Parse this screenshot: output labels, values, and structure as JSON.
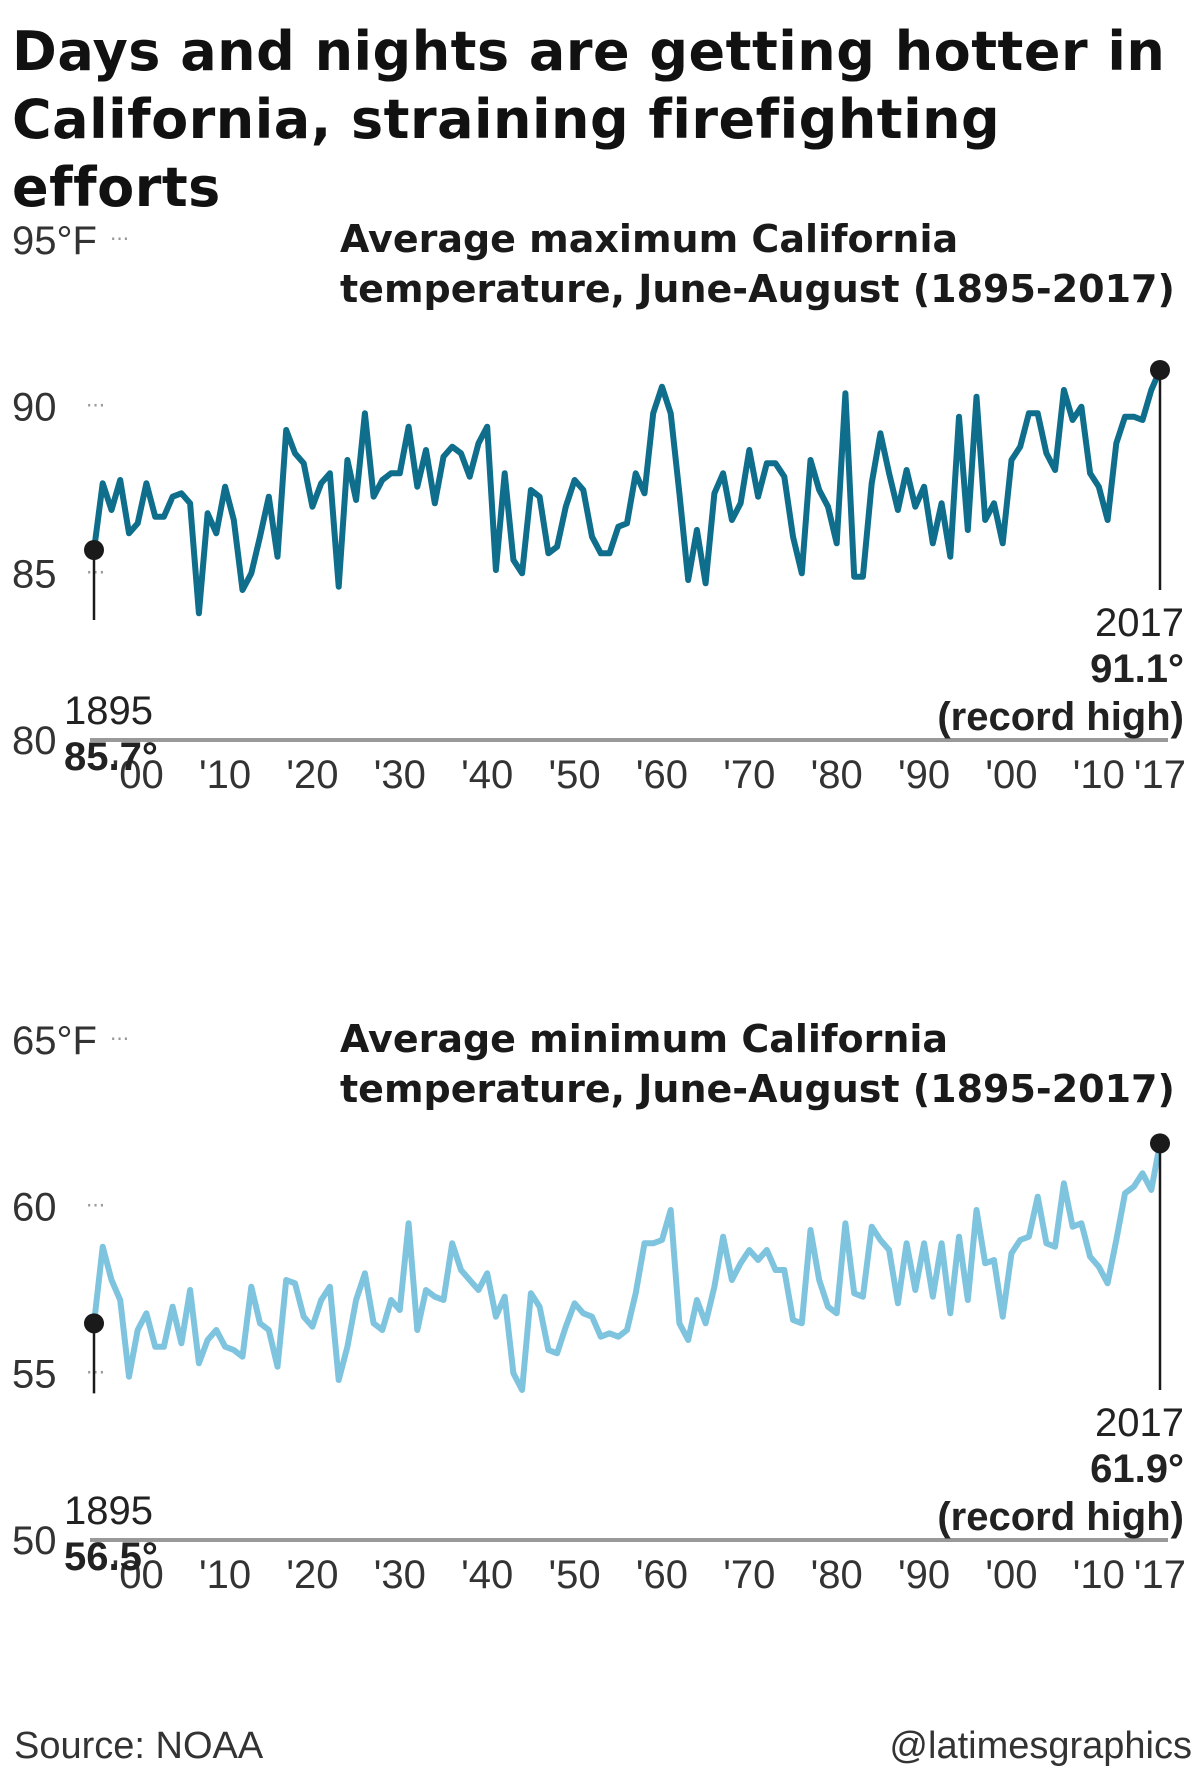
{
  "headline": "Days and nights are getting hotter in California, straining firefighting efforts",
  "source": "Source: NOAA",
  "credit": "@latimesgraphics",
  "colors": {
    "max_line": "#0e6e8c",
    "min_line": "#7fc4df",
    "axis": "#999999",
    "marker": "#1a1a1a"
  },
  "chart_data": [
    {
      "type": "line",
      "title": "Average maximum California temperature, June-August (1895-2017)",
      "y_ticks": [
        "95°F",
        "90",
        "85",
        "80"
      ],
      "y_tick_values": [
        95,
        90,
        85,
        80
      ],
      "ylim": [
        80,
        95
      ],
      "xlim": [
        1895,
        2017
      ],
      "x_ticks": [
        "'00",
        "'10",
        "'20",
        "'30",
        "'40",
        "'50",
        "'60",
        "'70",
        "'80",
        "'90",
        "'00",
        "'10",
        "'17"
      ],
      "x_tick_values": [
        1900,
        1910,
        1920,
        1930,
        1940,
        1950,
        1960,
        1970,
        1980,
        1990,
        2000,
        2010,
        2017
      ],
      "start": {
        "year": "1895",
        "value": "85.7°"
      },
      "end": {
        "year": "2017",
        "value": "91.1°",
        "note": "(record high)"
      },
      "x": [
        1895,
        1896,
        1897,
        1898,
        1899,
        1900,
        1901,
        1902,
        1903,
        1904,
        1905,
        1906,
        1907,
        1908,
        1909,
        1910,
        1911,
        1912,
        1913,
        1914,
        1915,
        1916,
        1917,
        1918,
        1919,
        1920,
        1921,
        1922,
        1923,
        1924,
        1925,
        1926,
        1927,
        1928,
        1929,
        1930,
        1931,
        1932,
        1933,
        1934,
        1935,
        1936,
        1937,
        1938,
        1939,
        1940,
        1941,
        1942,
        1943,
        1944,
        1945,
        1946,
        1947,
        1948,
        1949,
        1950,
        1951,
        1952,
        1953,
        1954,
        1955,
        1956,
        1957,
        1958,
        1959,
        1960,
        1961,
        1962,
        1963,
        1964,
        1965,
        1966,
        1967,
        1968,
        1969,
        1970,
        1971,
        1972,
        1973,
        1974,
        1975,
        1976,
        1977,
        1978,
        1979,
        1980,
        1981,
        1982,
        1983,
        1984,
        1985,
        1986,
        1987,
        1988,
        1989,
        1990,
        1991,
        1992,
        1993,
        1994,
        1995,
        1996,
        1997,
        1998,
        1999,
        2000,
        2001,
        2002,
        2003,
        2004,
        2005,
        2006,
        2007,
        2008,
        2009,
        2010,
        2011,
        2012,
        2013,
        2014,
        2015,
        2016,
        2017
      ],
      "values": [
        85.7,
        87.7,
        86.9,
        87.8,
        86.2,
        86.5,
        87.7,
        86.7,
        86.7,
        87.3,
        87.4,
        87.1,
        83.8,
        86.8,
        86.2,
        87.6,
        86.6,
        84.5,
        85.0,
        86.1,
        87.3,
        85.5,
        89.3,
        88.6,
        88.3,
        87.0,
        87.7,
        88.0,
        84.6,
        88.4,
        87.2,
        89.8,
        87.3,
        87.8,
        88.0,
        88.0,
        89.4,
        87.6,
        88.7,
        87.1,
        88.5,
        88.8,
        88.6,
        87.9,
        88.9,
        89.4,
        85.1,
        88.0,
        85.4,
        85.0,
        87.5,
        87.3,
        85.6,
        85.8,
        87.0,
        87.8,
        87.5,
        86.1,
        85.6,
        85.6,
        86.4,
        86.5,
        88.0,
        87.4,
        89.8,
        90.6,
        89.8,
        87.4,
        84.8,
        86.3,
        84.7,
        87.4,
        88.0,
        86.6,
        87.1,
        88.7,
        87.3,
        88.3,
        88.3,
        87.9,
        86.1,
        85.0,
        88.4,
        87.5,
        87.0,
        85.9,
        90.4,
        84.9,
        84.9,
        87.7,
        89.2,
        88.0,
        86.9,
        88.1,
        87.0,
        87.6,
        85.9,
        87.1,
        85.5,
        89.7,
        86.3,
        90.3,
        86.6,
        87.1,
        85.9,
        88.4,
        88.8,
        89.8,
        89.8,
        88.6,
        88.1,
        90.5,
        89.6,
        90.0,
        88.0,
        87.6,
        86.6,
        88.9,
        89.7,
        89.7,
        89.6,
        90.5,
        91.1
      ]
    },
    {
      "type": "line",
      "title": "Average minimum California temperature, June-August (1895-2017)",
      "y_ticks": [
        "65°F",
        "60",
        "55",
        "50"
      ],
      "y_tick_values": [
        65,
        60,
        55,
        50
      ],
      "ylim": [
        50,
        65
      ],
      "xlim": [
        1895,
        2017
      ],
      "x_ticks": [
        "'00",
        "'10",
        "'20",
        "'30",
        "'40",
        "'50",
        "'60",
        "'70",
        "'80",
        "'90",
        "'00",
        "'10",
        "'17"
      ],
      "x_tick_values": [
        1900,
        1910,
        1920,
        1930,
        1940,
        1950,
        1960,
        1970,
        1980,
        1990,
        2000,
        2010,
        2017
      ],
      "start": {
        "year": "1895",
        "value": "56.5°"
      },
      "end": {
        "year": "2017",
        "value": "61.9°",
        "note": "(record high)"
      },
      "x": [
        1895,
        1896,
        1897,
        1898,
        1899,
        1900,
        1901,
        1902,
        1903,
        1904,
        1905,
        1906,
        1907,
        1908,
        1909,
        1910,
        1911,
        1912,
        1913,
        1914,
        1915,
        1916,
        1917,
        1918,
        1919,
        1920,
        1921,
        1922,
        1923,
        1924,
        1925,
        1926,
        1927,
        1928,
        1929,
        1930,
        1931,
        1932,
        1933,
        1934,
        1935,
        1936,
        1937,
        1938,
        1939,
        1940,
        1941,
        1942,
        1943,
        1944,
        1945,
        1946,
        1947,
        1948,
        1949,
        1950,
        1951,
        1952,
        1953,
        1954,
        1955,
        1956,
        1957,
        1958,
        1959,
        1960,
        1961,
        1962,
        1963,
        1964,
        1965,
        1966,
        1967,
        1968,
        1969,
        1970,
        1971,
        1972,
        1973,
        1974,
        1975,
        1976,
        1977,
        1978,
        1979,
        1980,
        1981,
        1982,
        1983,
        1984,
        1985,
        1986,
        1987,
        1988,
        1989,
        1990,
        1991,
        1992,
        1993,
        1994,
        1995,
        1996,
        1997,
        1998,
        1999,
        2000,
        2001,
        2002,
        2003,
        2004,
        2005,
        2006,
        2007,
        2008,
        2009,
        2010,
        2011,
        2012,
        2013,
        2014,
        2015,
        2016,
        2017
      ],
      "values": [
        56.5,
        58.8,
        57.8,
        57.2,
        54.9,
        56.3,
        56.8,
        55.8,
        55.8,
        57.0,
        55.9,
        57.5,
        55.3,
        56.0,
        56.3,
        55.8,
        55.7,
        55.5,
        57.6,
        56.5,
        56.3,
        55.2,
        57.8,
        57.7,
        56.7,
        56.4,
        57.2,
        57.6,
        54.8,
        55.8,
        57.2,
        58.0,
        56.5,
        56.3,
        57.2,
        56.9,
        59.5,
        56.3,
        57.5,
        57.3,
        57.2,
        58.9,
        58.1,
        57.8,
        57.5,
        58.0,
        56.7,
        57.3,
        55.0,
        54.5,
        57.4,
        57.0,
        55.7,
        55.6,
        56.4,
        57.1,
        56.8,
        56.7,
        56.1,
        56.2,
        56.1,
        56.3,
        57.4,
        58.9,
        58.9,
        59.0,
        59.9,
        56.5,
        56.0,
        57.2,
        56.5,
        57.6,
        59.1,
        57.8,
        58.3,
        58.7,
        58.4,
        58.7,
        58.1,
        58.1,
        56.6,
        56.5,
        59.3,
        57.8,
        57.0,
        56.8,
        59.5,
        57.4,
        57.3,
        59.4,
        59.0,
        58.7,
        57.1,
        58.9,
        57.5,
        58.9,
        57.3,
        58.9,
        56.8,
        59.1,
        57.2,
        59.9,
        58.3,
        58.4,
        56.7,
        58.6,
        59.0,
        59.1,
        60.3,
        58.9,
        58.8,
        60.7,
        59.4,
        59.5,
        58.5,
        58.2,
        57.7,
        59.0,
        60.4,
        60.6,
        61.0,
        60.5,
        61.9
      ]
    }
  ]
}
